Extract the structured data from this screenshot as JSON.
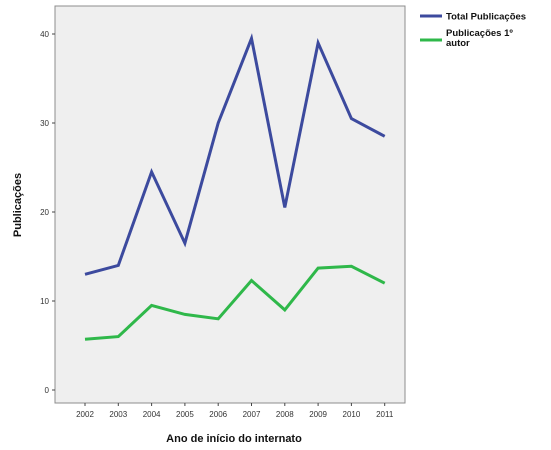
{
  "chart_data": {
    "type": "line",
    "title": "",
    "xlabel": "Ano de início do internato",
    "ylabel": "Publicações",
    "categories": [
      "2002",
      "2003",
      "2004",
      "2005",
      "2006",
      "2007",
      "2008",
      "2009",
      "2010",
      "2011"
    ],
    "ylim": [
      0,
      40
    ],
    "yticks": [
      "0",
      "10",
      "20",
      "30",
      "40"
    ],
    "grid": false,
    "legend_position": "top-right",
    "series": [
      {
        "name": "Total Publicações",
        "color": "#3c4a9e",
        "values": [
          13,
          14,
          24.5,
          16.5,
          30,
          39.5,
          20.5,
          39,
          30.5,
          28.5
        ]
      },
      {
        "name": "Publicações 1º autor",
        "color": "#2fb84a",
        "values": [
          5.7,
          6,
          9.5,
          8.5,
          8,
          12.3,
          9,
          13.7,
          13.9,
          12
        ]
      }
    ]
  }
}
